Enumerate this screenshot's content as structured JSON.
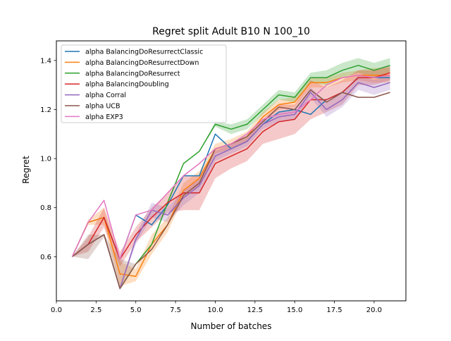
{
  "chart_data": {
    "type": "line",
    "title": "Regret split Adult B10 N 100_10",
    "xlabel": "Number of batches",
    "ylabel": "Regret",
    "xlim": [
      0,
      22
    ],
    "ylim": [
      0.42,
      1.48
    ],
    "xticks": [
      0.0,
      2.5,
      5.0,
      7.5,
      10.0,
      12.5,
      15.0,
      17.5,
      20.0
    ],
    "xtick_labels": [
      "0.0",
      "2.5",
      "5.0",
      "7.5",
      "10.0",
      "12.5",
      "15.0",
      "17.5",
      "20.0"
    ],
    "yticks": [
      0.6,
      0.8,
      1.0,
      1.2,
      1.4
    ],
    "ytick_labels": [
      "0.6",
      "0.8",
      "1.0",
      "1.2",
      "1.4"
    ],
    "grid": false,
    "legend_position": "upper-left",
    "x": [
      1,
      2,
      3,
      4,
      5,
      6,
      7,
      8,
      9,
      10,
      11,
      12,
      13,
      14,
      15,
      16,
      17,
      18,
      19,
      20,
      21
    ],
    "series": [
      {
        "name": "alpha BalancingDoResurrectClassic",
        "color": "#1f77b4",
        "values": [
          0.6,
          0.74,
          0.76,
          0.59,
          0.77,
          0.73,
          0.81,
          0.93,
          0.93,
          1.1,
          1.04,
          1.07,
          1.14,
          1.19,
          1.2,
          1.18,
          1.24,
          1.27,
          1.33,
          1.33,
          1.33
        ],
        "lower": [
          0.6,
          0.74,
          0.76,
          0.59,
          0.77,
          0.73,
          0.81,
          0.93,
          0.93,
          1.1,
          1.04,
          1.07,
          1.14,
          1.19,
          1.2,
          1.18,
          1.24,
          1.27,
          1.33,
          1.33,
          1.33
        ],
        "upper": [
          0.6,
          0.74,
          0.76,
          0.59,
          0.77,
          0.73,
          0.81,
          0.93,
          0.93,
          1.1,
          1.04,
          1.07,
          1.14,
          1.19,
          1.2,
          1.18,
          1.24,
          1.27,
          1.33,
          1.33,
          1.33
        ]
      },
      {
        "name": "alpha BalancingDoResurrectDown",
        "color": "#ff7f0e",
        "values": [
          0.6,
          0.74,
          0.76,
          0.53,
          0.52,
          0.65,
          0.73,
          0.87,
          0.92,
          1.04,
          1.06,
          1.09,
          1.17,
          1.22,
          1.23,
          1.31,
          1.31,
          1.33,
          1.34,
          1.34,
          1.34
        ],
        "lower": [
          0.6,
          0.73,
          0.73,
          0.48,
          0.5,
          0.61,
          0.7,
          0.84,
          0.89,
          1.02,
          1.04,
          1.07,
          1.15,
          1.2,
          1.21,
          1.29,
          1.29,
          1.31,
          1.32,
          1.31,
          1.31
        ],
        "upper": [
          0.6,
          0.75,
          0.8,
          0.58,
          0.55,
          0.69,
          0.76,
          0.9,
          0.95,
          1.06,
          1.08,
          1.11,
          1.19,
          1.24,
          1.25,
          1.33,
          1.33,
          1.35,
          1.36,
          1.37,
          1.37
        ]
      },
      {
        "name": "alpha BalancingDoResurrect",
        "color": "#2ca02c",
        "values": [
          0.6,
          0.65,
          0.69,
          0.47,
          0.57,
          0.65,
          0.82,
          0.98,
          1.03,
          1.14,
          1.12,
          1.14,
          1.2,
          1.26,
          1.25,
          1.33,
          1.33,
          1.36,
          1.38,
          1.36,
          1.38
        ],
        "lower": [
          0.6,
          0.65,
          0.69,
          0.47,
          0.57,
          0.65,
          0.82,
          0.98,
          1.03,
          1.13,
          1.1,
          1.12,
          1.18,
          1.24,
          1.23,
          1.31,
          1.3,
          1.33,
          1.35,
          1.33,
          1.35
        ],
        "upper": [
          0.6,
          0.65,
          0.69,
          0.47,
          0.57,
          0.65,
          0.82,
          0.98,
          1.03,
          1.15,
          1.14,
          1.16,
          1.22,
          1.28,
          1.27,
          1.35,
          1.36,
          1.39,
          1.41,
          1.39,
          1.41
        ]
      },
      {
        "name": "alpha BalancingDoubling",
        "color": "#d62728",
        "values": [
          0.6,
          0.65,
          0.76,
          0.59,
          0.69,
          0.76,
          0.82,
          0.86,
          0.86,
          0.98,
          1.01,
          1.04,
          1.11,
          1.15,
          1.16,
          1.24,
          1.24,
          1.27,
          1.33,
          1.33,
          1.35
        ],
        "lower": [
          0.6,
          0.62,
          0.72,
          0.56,
          0.66,
          0.72,
          0.78,
          0.79,
          0.79,
          0.92,
          0.96,
          0.99,
          1.06,
          1.08,
          1.1,
          1.16,
          1.19,
          1.22,
          1.3,
          1.3,
          1.32
        ],
        "upper": [
          0.6,
          0.68,
          0.8,
          0.62,
          0.72,
          0.8,
          0.86,
          0.93,
          0.93,
          1.04,
          1.06,
          1.09,
          1.16,
          1.22,
          1.22,
          1.32,
          1.29,
          1.32,
          1.36,
          1.36,
          1.38
        ]
      },
      {
        "name": "alpha Corral",
        "color": "#9467bd",
        "values": [
          0.6,
          0.65,
          0.69,
          0.47,
          0.67,
          0.79,
          0.77,
          0.84,
          0.89,
          1.01,
          1.04,
          1.07,
          1.14,
          1.17,
          1.18,
          1.27,
          1.2,
          1.24,
          1.31,
          1.29,
          1.31
        ],
        "lower": [
          0.6,
          0.65,
          0.69,
          0.47,
          0.65,
          0.76,
          0.74,
          0.81,
          0.86,
          0.99,
          1.02,
          1.05,
          1.12,
          1.15,
          1.16,
          1.25,
          1.17,
          1.21,
          1.28,
          1.26,
          1.28
        ],
        "upper": [
          0.6,
          0.65,
          0.69,
          0.47,
          0.69,
          0.82,
          0.8,
          0.87,
          0.92,
          1.03,
          1.06,
          1.09,
          1.16,
          1.19,
          1.2,
          1.29,
          1.23,
          1.27,
          1.34,
          1.32,
          1.34
        ]
      },
      {
        "name": "alpha UCB",
        "color": "#8c564b",
        "values": [
          0.6,
          0.65,
          0.69,
          0.47,
          0.57,
          0.63,
          0.73,
          0.85,
          0.9,
          1.04,
          1.06,
          1.09,
          1.15,
          1.21,
          1.2,
          1.28,
          1.23,
          1.27,
          1.25,
          1.25,
          1.27
        ],
        "lower": [
          0.6,
          0.59,
          0.68,
          0.47,
          0.57,
          0.63,
          0.73,
          0.85,
          0.9,
          1.04,
          1.06,
          1.09,
          1.15,
          1.21,
          1.2,
          1.28,
          1.23,
          1.27,
          1.25,
          1.25,
          1.27
        ],
        "upper": [
          0.6,
          0.69,
          0.69,
          0.59,
          0.57,
          0.63,
          0.73,
          0.85,
          0.9,
          1.04,
          1.06,
          1.09,
          1.15,
          1.21,
          1.2,
          1.28,
          1.23,
          1.27,
          1.25,
          1.25,
          1.27
        ]
      },
      {
        "name": "alpha EXP3",
        "color": "#e377c2",
        "values": [
          0.6,
          0.74,
          0.83,
          0.59,
          0.77,
          0.79,
          0.86,
          0.93,
          0.98,
          1.04,
          1.06,
          1.1,
          1.16,
          1.18,
          1.19,
          1.24,
          1.3,
          1.33,
          1.34,
          1.33,
          1.34
        ],
        "lower": [
          0.6,
          0.74,
          0.83,
          0.59,
          0.77,
          0.79,
          0.86,
          0.93,
          0.98,
          1.04,
          1.06,
          1.1,
          1.16,
          1.18,
          1.19,
          1.24,
          1.3,
          1.33,
          1.34,
          1.33,
          1.34
        ],
        "upper": [
          0.6,
          0.74,
          0.83,
          0.59,
          0.77,
          0.79,
          0.86,
          0.93,
          0.98,
          1.04,
          1.06,
          1.1,
          1.16,
          1.18,
          1.19,
          1.24,
          1.3,
          1.33,
          1.34,
          1.33,
          1.34
        ]
      }
    ]
  }
}
